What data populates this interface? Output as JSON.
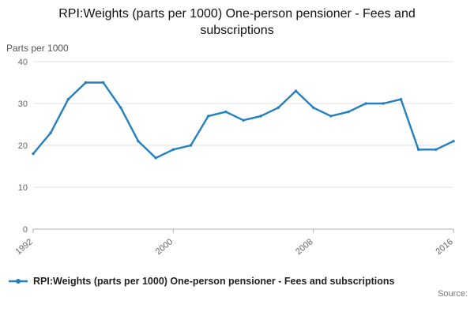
{
  "title": "RPI:Weights (parts per 1000) One-person pensioner - Fees and subscriptions",
  "chart": {
    "unit_label": "Parts per 1000"
  },
  "legend": {
    "label": "RPI:Weights (parts per 1000) One-person pensioner - Fees and subscriptions"
  },
  "footer": {
    "source_label": "Source:"
  },
  "chart_data": {
    "type": "line",
    "title": "RPI:Weights (parts per 1000) One-person pensioner - Fees and subscriptions",
    "xlabel": "",
    "ylabel": "Parts per 1000",
    "x": [
      1992,
      1993,
      1994,
      1995,
      1996,
      1997,
      1998,
      1999,
      2000,
      2001,
      2002,
      2003,
      2004,
      2005,
      2006,
      2007,
      2008,
      2009,
      2010,
      2011,
      2012,
      2013,
      2014,
      2015,
      2016
    ],
    "values": [
      18,
      23,
      31,
      35,
      35,
      29,
      21,
      17,
      19,
      20,
      27,
      28,
      26,
      27,
      29,
      33,
      29,
      27,
      28,
      30,
      30,
      31,
      19,
      19,
      21
    ],
    "xlim": [
      1992,
      2016
    ],
    "ylim": [
      0,
      40
    ],
    "xticks": [
      1992,
      2000,
      2008,
      2016
    ],
    "yticks": [
      0,
      10,
      20,
      30,
      40
    ],
    "grid": true,
    "legend_position": "bottom",
    "line_color": "#2380bf"
  }
}
